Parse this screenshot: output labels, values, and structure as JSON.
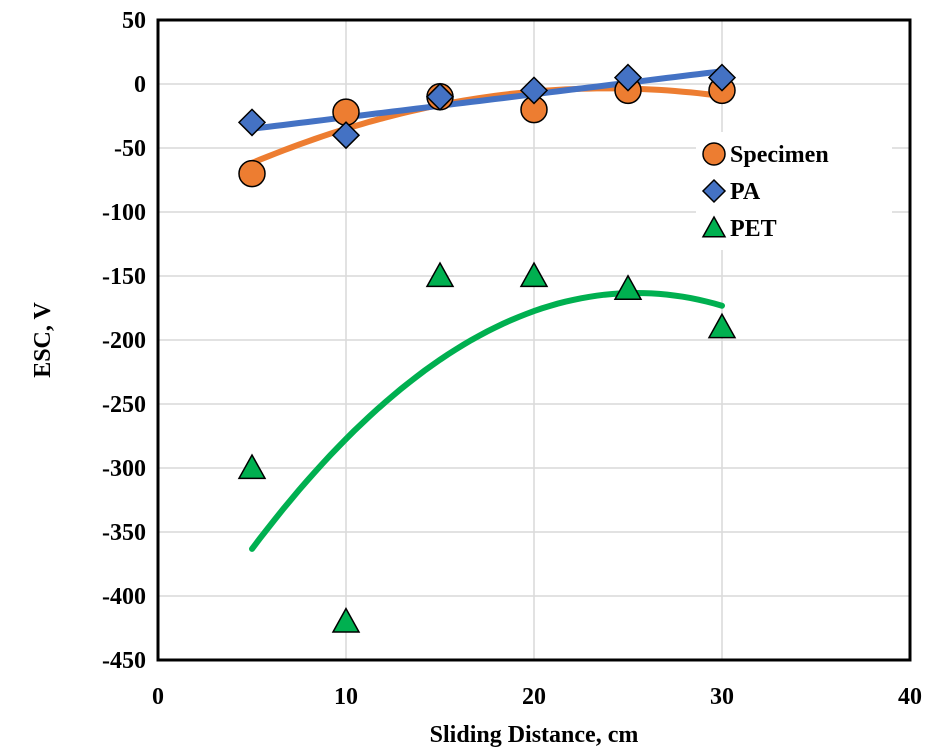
{
  "chart_data": {
    "type": "scatter",
    "xlabel": "Sliding Distance, cm",
    "ylabel": "ESC, V",
    "xlim": [
      0,
      40
    ],
    "ylim": [
      -450,
      50
    ],
    "x_ticks": [
      "0",
      "10",
      "20",
      "30",
      "40"
    ],
    "y_ticks": [
      "50",
      "0",
      "-50",
      "-100",
      "-150",
      "-200",
      "-250",
      "-300",
      "-350",
      "-400",
      "-450"
    ],
    "grid": true,
    "legend_position": "right",
    "series": [
      {
        "name": "Specimen",
        "marker": "circle",
        "color": "#ED7D31",
        "x": [
          5,
          10,
          15,
          20,
          25,
          30
        ],
        "y": [
          -70,
          -22,
          -10,
          -20,
          -5,
          -5
        ],
        "trend": {
          "type": "polynomial-2",
          "color": "#ED7D31"
        }
      },
      {
        "name": "PA",
        "marker": "diamond",
        "color": "#4472C4",
        "x": [
          5,
          10,
          15,
          20,
          25,
          30
        ],
        "y": [
          -30,
          -40,
          -10,
          -5,
          5,
          5
        ],
        "trend": {
          "type": "linear",
          "color": "#4472C4"
        }
      },
      {
        "name": "PET",
        "marker": "triangle",
        "color": "#00B050",
        "x": [
          5,
          10,
          15,
          20,
          25,
          30
        ],
        "y": [
          -300,
          -420,
          -150,
          -150,
          -160,
          -190
        ],
        "trend": {
          "type": "polynomial-2",
          "color": "#00B050"
        }
      }
    ]
  }
}
